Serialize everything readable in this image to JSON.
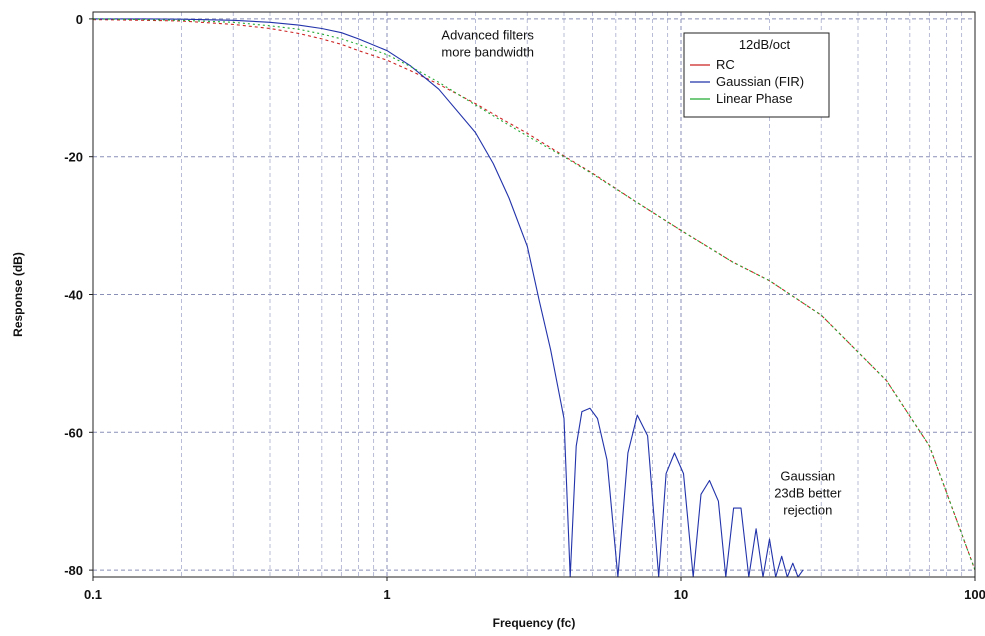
{
  "chart_data": {
    "type": "line",
    "title": "",
    "xlabel": "Frequency (fc)",
    "ylabel": "Response (dB)",
    "x_scale": "log",
    "xlim": [
      0.1,
      100
    ],
    "ylim": [
      -81,
      1
    ],
    "grid": true,
    "x_ticks": [
      0.1,
      1,
      10,
      100
    ],
    "x_tick_labels": [
      "0.1",
      "1",
      "10",
      "100"
    ],
    "y_ticks": [
      0,
      -20,
      -40,
      -60,
      -80
    ],
    "y_tick_labels": [
      "0",
      "-20",
      "-40",
      "-60",
      "-80"
    ],
    "legend": {
      "title": "12dB/oct",
      "placement": "top-right",
      "entries": [
        "RC",
        "Gaussian (FIR)",
        "Linear Phase"
      ]
    },
    "annotations": [
      {
        "lines": [
          "Advanced filters",
          "more bandwidth"
        ],
        "x": 2.2,
        "y": -3
      },
      {
        "lines": [
          "Gaussian",
          "23dB better",
          "rejection"
        ],
        "x": 27,
        "y": -67
      }
    ],
    "series": [
      {
        "name": "RC",
        "color": "#cc2222",
        "dash": "3,3",
        "x": [
          0.1,
          0.15,
          0.2,
          0.3,
          0.4,
          0.5,
          0.6,
          0.7,
          0.8,
          1,
          1.2,
          1.5,
          2,
          2.5,
          3,
          4,
          5,
          7,
          10,
          15,
          20,
          30,
          50,
          70,
          100
        ],
        "y": [
          -0.1,
          -0.2,
          -0.3,
          -0.8,
          -1.4,
          -2.1,
          -2.9,
          -3.7,
          -4.6,
          -6.0,
          -7.5,
          -9.5,
          -12.3,
          -14.7,
          -16.6,
          -19.9,
          -22.4,
          -26.5,
          -30.7,
          -35.3,
          -38.0,
          -43.0,
          -52.5,
          -62.0,
          -80.0
        ]
      },
      {
        "name": "Gaussian (FIR)",
        "color": "#2233aa",
        "dash": "",
        "x": [
          0.1,
          0.15,
          0.2,
          0.3,
          0.4,
          0.5,
          0.6,
          0.7,
          0.8,
          1,
          1.2,
          1.5,
          2,
          2.3,
          2.6,
          3,
          3.3,
          3.6,
          4,
          4.2,
          4.4,
          4.6,
          4.9,
          5.2,
          5.6,
          6.1,
          6.6,
          7.1,
          7.7,
          8.4,
          8.9,
          9.5,
          10.2,
          11,
          11.7,
          12.5,
          13.4,
          14.2,
          15.1,
          16,
          17,
          18,
          19,
          20,
          21,
          22,
          23,
          24,
          25,
          26
        ],
        "y": [
          0,
          0,
          -0.05,
          -0.2,
          -0.5,
          -0.9,
          -1.4,
          -2.0,
          -2.9,
          -4.6,
          -6.8,
          -10.2,
          -16.5,
          -21.0,
          -26.0,
          -33.0,
          -41.0,
          -48.0,
          -58.0,
          -81.0,
          -62.0,
          -57.0,
          -56.5,
          -58.0,
          -64.0,
          -81.0,
          -63.0,
          -57.5,
          -60.5,
          -81.0,
          -66.0,
          -63.0,
          -66.0,
          -81.0,
          -69.0,
          -67.0,
          -70.0,
          -81.0,
          -71.0,
          -71.0,
          -81.0,
          -74.0,
          -81.0,
          -75.5,
          -81.0,
          -78.0,
          -81.0,
          -79.0,
          -81.0,
          -80.0
        ]
      },
      {
        "name": "Linear Phase",
        "color": "#22aa33",
        "dash": "2,3",
        "x": [
          0.1,
          0.15,
          0.2,
          0.3,
          0.4,
          0.5,
          0.6,
          0.7,
          0.8,
          1,
          1.2,
          1.5,
          2,
          2.5,
          3,
          4,
          5,
          7,
          10,
          15,
          20,
          30,
          50,
          70,
          100
        ],
        "y": [
          0,
          -0.1,
          -0.2,
          -0.5,
          -1.0,
          -1.5,
          -2.2,
          -2.9,
          -3.7,
          -5.2,
          -6.9,
          -9.2,
          -12.5,
          -15.0,
          -17.0,
          -20.0,
          -22.5,
          -26.5,
          -30.7,
          -35.3,
          -38.0,
          -43.0,
          -52.5,
          -62.0,
          -80.0
        ]
      }
    ]
  }
}
